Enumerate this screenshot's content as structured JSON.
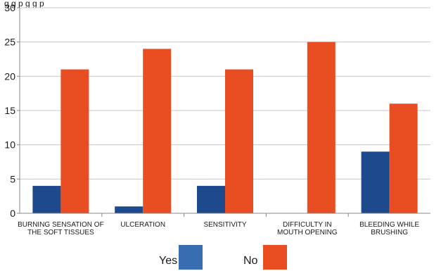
{
  "chart_data": {
    "type": "bar",
    "title_partial": "g                        g                p    g g        p",
    "categories": [
      [
        "BURNING SENSATION OF",
        "THE SOFT TISSUES"
      ],
      [
        "ULCERATION"
      ],
      [
        "SENSITIVITY"
      ],
      [
        "DIFFICULTY IN",
        "MOUTH OPENING"
      ],
      [
        "BLEEDING WHILE",
        "BRUSHING"
      ]
    ],
    "series": [
      {
        "name": "Yes",
        "values": [
          4,
          1,
          4,
          0,
          9
        ],
        "color": "#1c4a8c"
      },
      {
        "name": "No",
        "values": [
          21,
          24,
          21,
          25,
          16
        ],
        "color": "#e84e22"
      }
    ],
    "ylim": [
      0,
      30
    ],
    "yticks": [
      0,
      5,
      10,
      15,
      20,
      25,
      30
    ],
    "grid": true,
    "legend_position": "bottom",
    "legend_swatch_colors": [
      "#3a6db0",
      "#e84e22"
    ],
    "xlabel": "",
    "ylabel": ""
  }
}
